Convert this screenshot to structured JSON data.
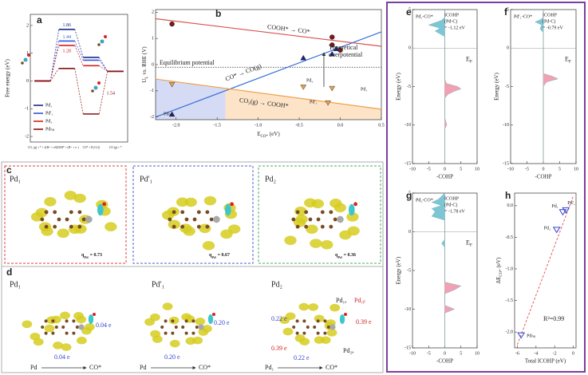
{
  "chart_data": [
    {
      "type": "energy-profile",
      "label": "a",
      "y_label": "Free energy (eV)",
      "categories": [
        "CO₂ (g) + * + 2(H⁺ + e⁻)",
        "COOH* + (H⁺ + e⁻)",
        "CO* + H₂O (l)",
        "CO (g) + *"
      ],
      "ylim": [
        -2.2,
        2.4
      ],
      "yticks": [
        -2,
        -1,
        0,
        1,
        2
      ],
      "legend": "lower left",
      "series": [
        {
          "name": "Pd₁",
          "color": "#1a2a8c",
          "values": [
            0,
            1.86,
            0.85,
            0.35
          ]
        },
        {
          "name": "Pd′₁",
          "color": "#3355dd",
          "values": [
            0,
            1.44,
            0.75,
            0.35
          ]
        },
        {
          "name": "Pd₂",
          "color": "#d62020",
          "values": [
            0,
            1.28,
            0.55,
            0.35
          ]
        },
        {
          "name": "Pdₙₚ",
          "color": "#8b1010",
          "values": [
            0,
            0.45,
            -1.19,
            0.35
          ]
        }
      ],
      "desorption_label": 1.54
    },
    {
      "type": "limiting-potential",
      "label": "b",
      "x_label": {
        "main": "E",
        "sub": "CO*",
        "rest": "(eV)"
      },
      "y_label": {
        "main": "U",
        "sub": "L",
        "rest": "vs. RHE (V)"
      },
      "xlim": [
        -2.25,
        0.5
      ],
      "ylim": [
        -2.1,
        2.1
      ],
      "xticks": [
        {
          "value": -2,
          "label": "-2.0"
        },
        -1.5,
        {
          "value": -1,
          "label": "-1.0"
        },
        -0.5,
        {
          "value": 0,
          "label": "0.0"
        },
        0.5
      ],
      "yticks": [
        -2,
        -1,
        0,
        1,
        2
      ],
      "shaded": [
        {
          "x": [
            -2.25,
            -1.4
          ],
          "color": "#d6dbf5"
        },
        {
          "x": [
            -1.4,
            0.5
          ],
          "color": "#fde3c8"
        }
      ],
      "lines": [
        {
          "label": "COOH* → CO*",
          "color": "#d9534f",
          "x": [
            -2.25,
            0.5
          ],
          "values": [
            1.75,
            0.7
          ]
        },
        {
          "label": "CO* → CO(g)",
          "color": "#3a6fd8",
          "x": [
            -2.25,
            0.5
          ],
          "values": [
            -2.0,
            1.25
          ]
        },
        {
          "label": "CO₂(g) → COOH*",
          "color": "#f0a04b",
          "x": [
            -2.25,
            0.5
          ],
          "values": [
            -0.55,
            -1.7
          ]
        }
      ],
      "points": [
        {
          "marker": "circle",
          "color": "#7a1a1a",
          "x": [
            -2.05,
            -0.1,
            -0.1,
            0.0
          ],
          "values": [
            1.55,
            1.05,
            0.75,
            0.55
          ]
        },
        {
          "marker": "triangle-up",
          "color": "#1a237e",
          "x": [
            -2.05,
            -0.45,
            -0.1,
            -0.05
          ],
          "values": [
            -1.9,
            0.25,
            0.4,
            0.6
          ]
        },
        {
          "marker": "triangle-down",
          "color": "#e0a050",
          "x": [
            -2.05,
            -0.45,
            -0.1,
            -0.15
          ],
          "values": [
            -0.75,
            -0.85,
            -0.9,
            -1.45
          ]
        }
      ],
      "equilibrium": {
        "label": "Equilibrium potential",
        "value": -0.1
      },
      "overpotential": {
        "label": [
          "Theoretical",
          "overpotential"
        ],
        "x": -0.2,
        "values": [
          0.45,
          -0.85
        ]
      },
      "point_labels": [
        "Pdₙₚ",
        "Pd₂",
        "Pd₁",
        "Pd′₁"
      ]
    },
    {
      "type": "cohp",
      "label": "e",
      "title": "Pd₁-CO*",
      "icohp": [
        "ICOHP",
        "(Pd-C)",
        "= -1.12 eV"
      ],
      "fermi": {
        "main": "E",
        "sub": "F"
      },
      "x_label": "-COHP",
      "y_label": "Energy (eV)",
      "xlim": [
        -10,
        10
      ],
      "xticks": [
        -10,
        -5,
        0,
        5,
        10
      ],
      "ylim": [
        -15,
        5
      ],
      "yticks": [
        -15,
        -10,
        -5,
        0,
        5
      ],
      "negative_color": "#7cc6d6",
      "positive_color": "#f2a0b4",
      "energy": [
        5,
        4,
        3.6,
        3.3,
        3,
        2.6,
        2.2,
        1.5,
        0,
        -2,
        -4,
        -4.6,
        -5,
        -5.3,
        -5.6,
        -6,
        -6.5,
        -9,
        -10,
        -10.5,
        -11,
        -15
      ],
      "values": [
        0,
        0,
        -1,
        -3,
        -5,
        -1.5,
        -3,
        0,
        0,
        0,
        0,
        0.5,
        4,
        5,
        3,
        1,
        0,
        0,
        0.6,
        0,
        0,
        0
      ]
    },
    {
      "type": "cohp",
      "label": "f",
      "title": "Pd′₁-CO*",
      "icohp": [
        "ICOHP",
        "(Pd-C)",
        "= -0.79 eV"
      ],
      "fermi": {
        "main": "E",
        "sub": "F"
      },
      "x_label": "-COHP",
      "y_label": "Energy (eV)",
      "xlim": [
        -10,
        10
      ],
      "xticks": [
        -10,
        -5,
        0,
        5,
        10
      ],
      "ylim": [
        -15,
        5
      ],
      "yticks": [
        -15,
        -10,
        -5,
        0,
        5
      ],
      "negative_color": "#7cc6d6",
      "positive_color": "#f2a0b4",
      "energy": [
        5,
        4,
        3.7,
        3.4,
        3,
        2.5,
        2,
        0,
        -2,
        -3.3,
        -3.7,
        -4,
        -4.4,
        -5,
        -8,
        -15
      ],
      "values": [
        0,
        0,
        -0.8,
        -2.5,
        -0.5,
        -1,
        0,
        0,
        0,
        0,
        3,
        4.5,
        1,
        0,
        0,
        0
      ]
    },
    {
      "type": "cohp",
      "label": "g",
      "title": "Pd₂-CO*",
      "icohp": [
        "ICOHP",
        "(Pd-C)",
        "= -1.78 eV"
      ],
      "fermi": {
        "main": "E",
        "sub": "F"
      },
      "x_label": "-COHP",
      "y_label": "Energy (eV)",
      "xlim": [
        -10,
        10
      ],
      "xticks": [
        -10,
        -5,
        0,
        5,
        10
      ],
      "ylim": [
        -15,
        5
      ],
      "yticks": [
        -15,
        -10,
        -5,
        0,
        5
      ],
      "negative_color": "#7cc6d6",
      "positive_color": "#f2a0b4",
      "energy": [
        5,
        4.2,
        3.8,
        3.4,
        3,
        2.6,
        2,
        1.5,
        0,
        -1,
        -1.5,
        -2,
        -4,
        -6.5,
        -7,
        -7.5,
        -8,
        -9.5,
        -10,
        -10.5,
        -15
      ],
      "values": [
        0,
        -2,
        -4,
        -1,
        -4,
        -3,
        -4,
        0,
        0,
        0,
        -1,
        0,
        0,
        0,
        5,
        3,
        0,
        0,
        3,
        0,
        0
      ]
    },
    {
      "type": "scatter",
      "label": "h",
      "x_label": "Total ICOHP (eV)",
      "y_label": {
        "main": "ΔE",
        "sub": "CO*",
        "rest": "(eV)"
      },
      "xlim": [
        -6.3,
        0.3
      ],
      "ylim": [
        -2.25,
        0.2
      ],
      "xticks": [
        -6,
        -4,
        -2,
        0
      ],
      "yticks": [
        {
          "value": -2,
          "label": "-2.0"
        },
        -1.5,
        {
          "value": -1,
          "label": "-1.0"
        },
        -0.5,
        {
          "value": 0,
          "label": "0.0"
        }
      ],
      "names": [
        "Pd₁",
        "Pd′₁",
        "Pd₂",
        "Pdₙₚ"
      ],
      "x": [
        -1.12,
        -0.79,
        -1.78,
        -5.6
      ],
      "values": [
        -0.1,
        -0.07,
        -0.38,
        -2.05
      ],
      "color": "#3344cc",
      "fit": {
        "x": [
          -6,
          0
        ],
        "values": [
          -2.2,
          0.15
        ],
        "color": "#e05050"
      },
      "annotation": "R²=0.99"
    }
  ],
  "panel_c": {
    "label": "c",
    "q_symbol": "q",
    "q_sub": "Pd",
    "items": [
      {
        "title": "Pd₁",
        "charge": "= 0.73"
      },
      {
        "title": "Pd′₁",
        "charge": "= 0.67"
      },
      {
        "title": "Pd₂",
        "charge": "= 0.36"
      }
    ]
  },
  "panel_d": {
    "label": "d",
    "items": [
      {
        "title": "Pd₁",
        "side_transfer": "0.04 e",
        "bottom_transfer": "0.04 e",
        "donor": "Pd",
        "acceptor": "CO*"
      },
      {
        "title": "Pd′₁",
        "side_transfer": "0.20 e",
        "bottom_transfer": "0.20 e",
        "donor": "Pd",
        "acceptor": "CO*"
      },
      {
        "title": "Pd₂",
        "side_transfer": "0.22 e",
        "bottom_transfer": "0.22 e",
        "donor": "Pd₁",
        "acceptor": "CO*",
        "extra": [
          "0.39 e",
          "0.39 e"
        ],
        "site_labels": [
          "Pd₁ₐ",
          "Pd₁ᵦ",
          "Pd₂ₐ"
        ]
      }
    ]
  }
}
